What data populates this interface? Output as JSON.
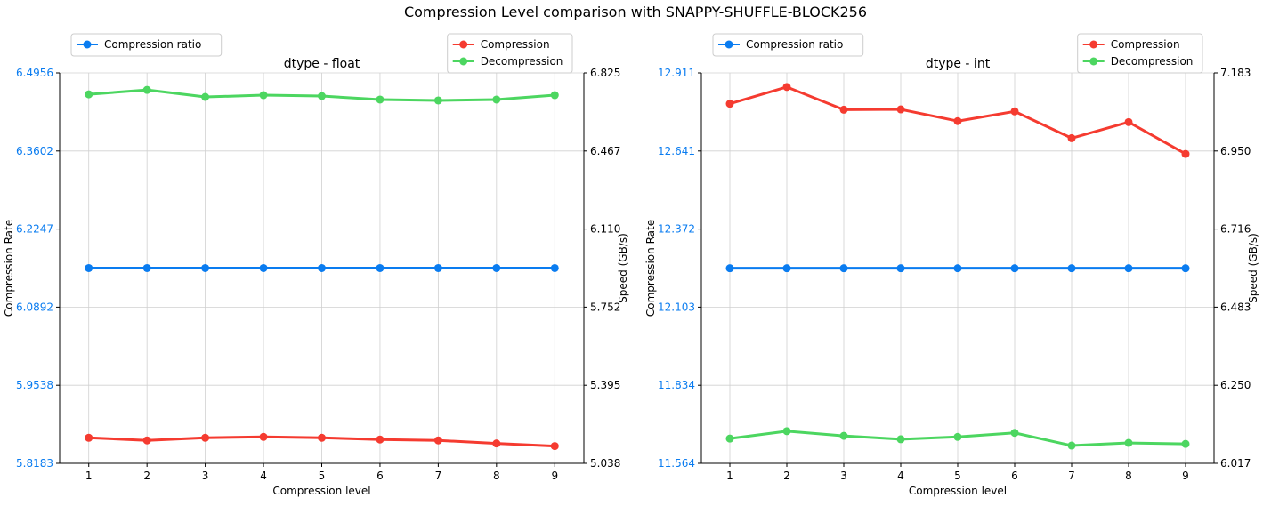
{
  "suptitle": "Compression Level comparison with SNAPPY-SHUFFLE-BLOCK256",
  "colors": {
    "ratio": "#0a7cf0",
    "compression": "#f53b30",
    "decompression": "#4cd660",
    "grid": "#d0d0d0"
  },
  "chart_data": [
    {
      "type": "line",
      "title": "dtype - float",
      "xlabel": "Compression level",
      "ylabel_left": "Compression Rate",
      "ylabel_right": "Speed (GB/s)",
      "x": [
        1,
        2,
        3,
        4,
        5,
        6,
        7,
        8,
        9
      ],
      "xticks": [
        "1",
        "2",
        "3",
        "4",
        "5",
        "6",
        "7",
        "8",
        "9"
      ],
      "ylim_left": [
        5.8183,
        6.4956
      ],
      "yticks_left": [
        "5.8183",
        "5.9538",
        "6.0892",
        "6.2247",
        "6.3602",
        "6.4956"
      ],
      "ylim_right": [
        5.038,
        6.825
      ],
      "yticks_right": [
        "5.038",
        "5.395",
        "5.752",
        "6.110",
        "6.467",
        "6.825"
      ],
      "grid": true,
      "legend_left": {
        "placement": "top-left",
        "entries": [
          "Compression ratio"
        ]
      },
      "legend_right": {
        "placement": "top-right",
        "entries": [
          "Compression",
          "Decompression"
        ]
      },
      "series": [
        {
          "name": "Compression ratio",
          "axis": "left",
          "color": "#0a7cf0",
          "values": [
            6.157,
            6.157,
            6.157,
            6.157,
            6.157,
            6.157,
            6.157,
            6.157,
            6.157
          ]
        },
        {
          "name": "Compression",
          "axis": "right",
          "color": "#f53b30",
          "values": [
            5.155,
            5.143,
            5.155,
            5.159,
            5.155,
            5.147,
            5.143,
            5.129,
            5.117
          ]
        },
        {
          "name": "Decompression",
          "axis": "right",
          "color": "#4cd660",
          "values": [
            6.727,
            6.747,
            6.715,
            6.723,
            6.719,
            6.703,
            6.699,
            6.703,
            6.723
          ]
        }
      ]
    },
    {
      "type": "line",
      "title": "dtype - int",
      "xlabel": "Compression level",
      "ylabel_left": "Compression Rate",
      "ylabel_right": "Speed (GB/s)",
      "x": [
        1,
        2,
        3,
        4,
        5,
        6,
        7,
        8,
        9
      ],
      "xticks": [
        "1",
        "2",
        "3",
        "4",
        "5",
        "6",
        "7",
        "8",
        "9"
      ],
      "ylim_left": [
        11.564,
        12.911
      ],
      "yticks_left": [
        "11.564",
        "11.834",
        "12.103",
        "12.372",
        "12.641",
        "12.911"
      ],
      "ylim_right": [
        6.017,
        7.183
      ],
      "yticks_right": [
        "6.017",
        "6.250",
        "6.483",
        "6.716",
        "6.950",
        "7.183"
      ],
      "grid": true,
      "legend_left": {
        "placement": "top-left",
        "entries": [
          "Compression ratio"
        ]
      },
      "legend_right": {
        "placement": "top-right",
        "entries": [
          "Compression",
          "Decompression"
        ]
      },
      "series": [
        {
          "name": "Compression ratio",
          "axis": "left",
          "color": "#0a7cf0",
          "values": [
            12.237,
            12.237,
            12.237,
            12.237,
            12.237,
            12.237,
            12.237,
            12.237,
            12.237
          ]
        },
        {
          "name": "Compression",
          "axis": "right",
          "color": "#f53b30",
          "values": [
            7.091,
            7.141,
            7.073,
            7.074,
            7.039,
            7.068,
            6.988,
            7.036,
            6.941
          ]
        },
        {
          "name": "Decompression",
          "axis": "right",
          "color": "#4cd660",
          "values": [
            6.091,
            6.113,
            6.099,
            6.089,
            6.096,
            6.108,
            6.07,
            6.078,
            6.075
          ]
        }
      ]
    }
  ]
}
